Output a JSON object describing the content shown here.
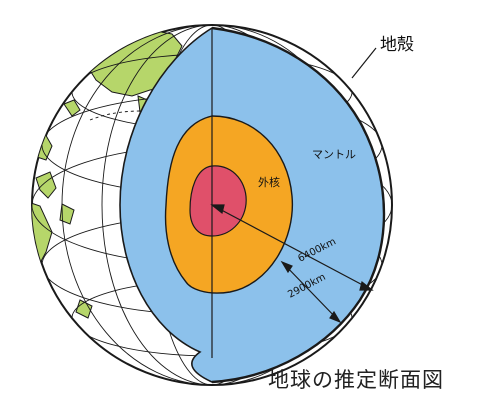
{
  "labels": {
    "crust": "地殻",
    "mantle": "マントル",
    "outer_core": "外核",
    "radius_label": "6400km",
    "depth_label": "2900km"
  },
  "caption": "地球の推定断面図",
  "colors": {
    "mantle": "#8cc1eb",
    "outer_core": "#f5a623",
    "inner_core": "#e0506a",
    "land": "#b6d66a",
    "globe": "#ffffff",
    "lines": "#1a1a1a"
  }
}
